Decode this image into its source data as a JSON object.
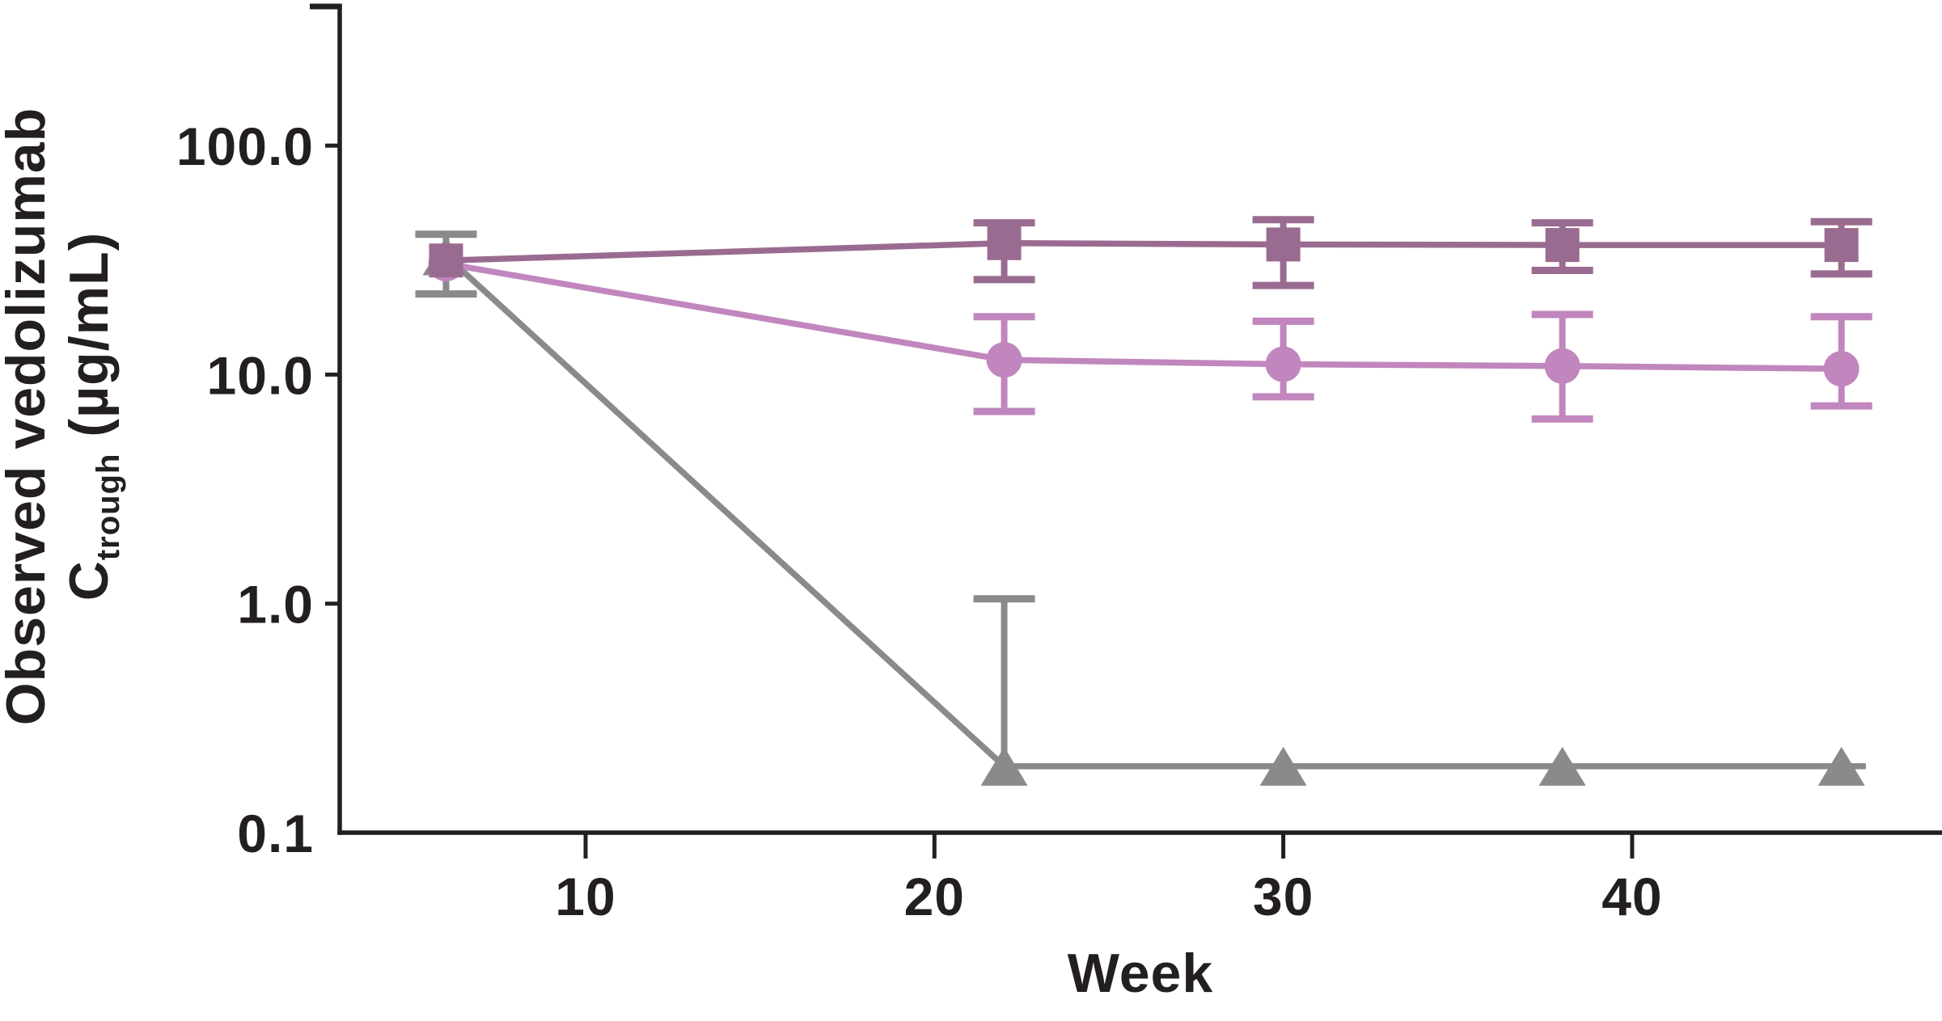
{
  "chart_data": {
    "type": "line",
    "title": "",
    "xlabel": "Week",
    "ylabel": {
      "line1": "Observed vedolizumab",
      "line2_main": "C",
      "line2_sub": "trough",
      "line2_unit": " (µg/mL)"
    },
    "x_axis": {
      "ticks": [
        10,
        20,
        30,
        40
      ],
      "range_weeks": [
        3,
        49
      ]
    },
    "y_axis": {
      "scale": "log10",
      "ticks": [
        {
          "value": 100.0,
          "label": "100.0"
        },
        {
          "value": 10.0,
          "label": "10.0"
        },
        {
          "value": 1.0,
          "label": "1.0"
        },
        {
          "value": 0.1,
          "label": "0.1"
        }
      ],
      "range": [
        0.1,
        400
      ]
    },
    "colors": {
      "squares": "#9a6b90",
      "circles": "#c186bd",
      "triangles": "#8a8a8c",
      "axis": "#231f20"
    },
    "series": [
      {
        "id": "triangles",
        "marker": "triangle",
        "color": "#8a8a8c",
        "line_end_week": 46.7,
        "points": [
          {
            "week": 6,
            "value": 33,
            "err_lo": 22.5,
            "err_hi": 41
          },
          {
            "week": 22,
            "value": 0.195,
            "err_lo": null,
            "err_hi": 1.05
          },
          {
            "week": 30,
            "value": 0.195,
            "err_lo": null,
            "err_hi": null
          },
          {
            "week": 38,
            "value": 0.195,
            "err_lo": null,
            "err_hi": null
          },
          {
            "week": 46,
            "value": 0.195,
            "err_lo": null,
            "err_hi": null
          }
        ]
      },
      {
        "id": "circles",
        "marker": "circle",
        "color": "#c186bd",
        "line_end_week": null,
        "points": [
          {
            "week": 6,
            "value": 30.5,
            "err_lo": null,
            "err_hi": null
          },
          {
            "week": 22,
            "value": 11.6,
            "err_lo": 6.9,
            "err_hi": 17.9
          },
          {
            "week": 30,
            "value": 11.1,
            "err_lo": 8.0,
            "err_hi": 17.1
          },
          {
            "week": 38,
            "value": 10.9,
            "err_lo": 6.4,
            "err_hi": 18.3
          },
          {
            "week": 46,
            "value": 10.6,
            "err_lo": 7.3,
            "err_hi": 17.9
          }
        ]
      },
      {
        "id": "squares",
        "marker": "square",
        "color": "#9a6b90",
        "line_end_week": null,
        "points": [
          {
            "week": 6,
            "value": 31.5,
            "err_lo": null,
            "err_hi": null
          },
          {
            "week": 22,
            "value": 37.5,
            "err_lo": 26,
            "err_hi": 46
          },
          {
            "week": 30,
            "value": 37,
            "err_lo": 24.5,
            "err_hi": 47.5
          },
          {
            "week": 38,
            "value": 36.8,
            "err_lo": 28.5,
            "err_hi": 46
          },
          {
            "week": 46,
            "value": 36.8,
            "err_lo": 27.5,
            "err_hi": 46.5
          }
        ]
      }
    ]
  }
}
